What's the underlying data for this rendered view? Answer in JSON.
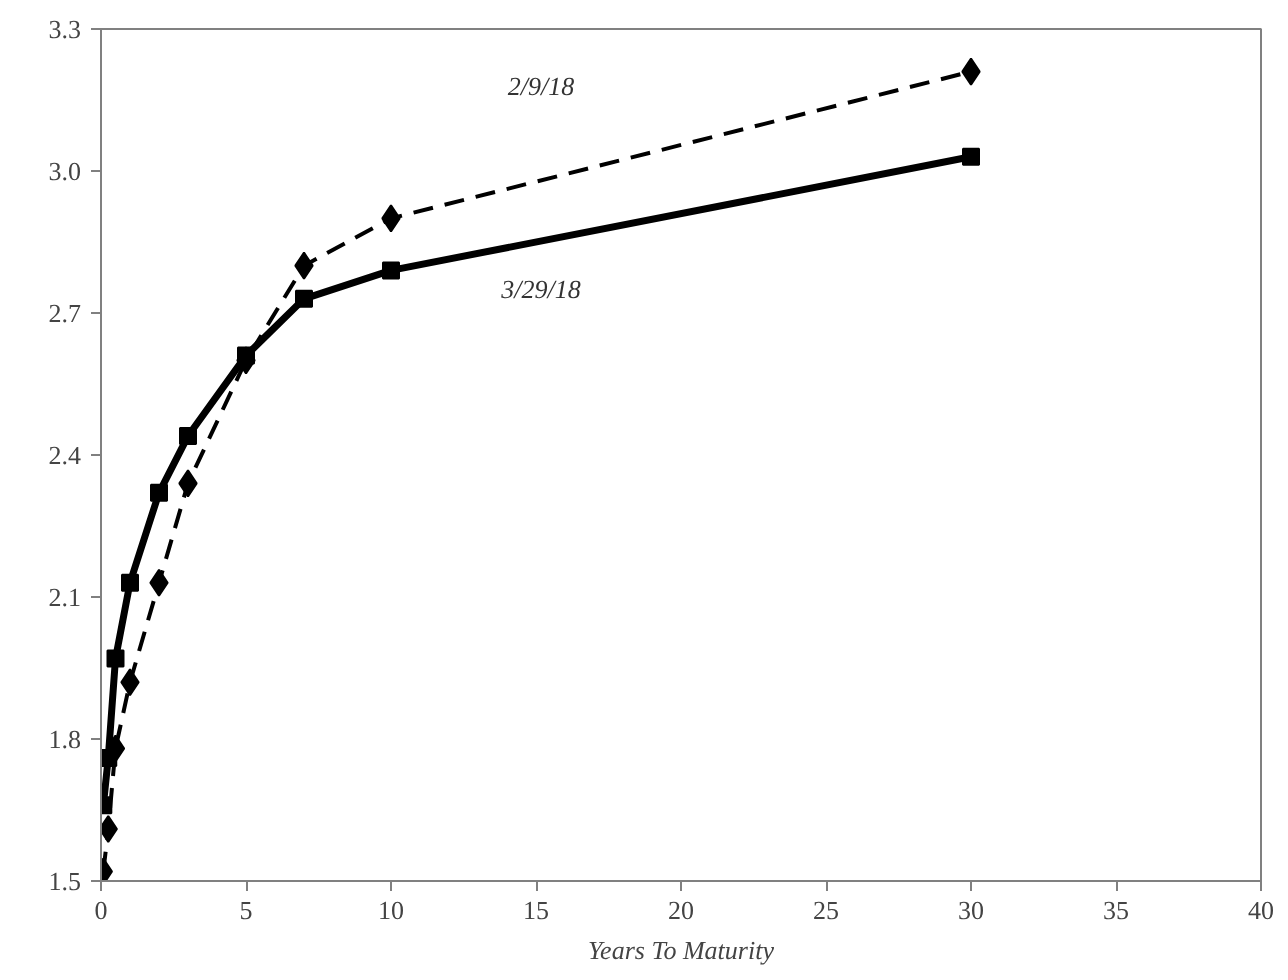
{
  "chart_data": {
    "type": "line",
    "xlabel": "Years To Maturity",
    "x": [
      0.08,
      0.25,
      0.5,
      1,
      2,
      3,
      5,
      7,
      10,
      30
    ],
    "series": [
      {
        "name": "2/9/18",
        "color": "#000000",
        "line_style": "dashed",
        "marker": "diamond",
        "values": [
          1.52,
          1.61,
          1.78,
          1.92,
          2.13,
          2.34,
          2.6,
          2.8,
          2.9,
          3.21
        ]
      },
      {
        "name": "3/29/18",
        "color": "#000000",
        "line_style": "solid",
        "marker": "square",
        "values": [
          1.66,
          1.76,
          1.97,
          2.13,
          2.32,
          2.44,
          2.61,
          2.73,
          2.79,
          3.03
        ]
      }
    ],
    "xlim": [
      0,
      40
    ],
    "xticks": [
      0,
      5,
      10,
      15,
      20,
      25,
      30,
      35,
      40
    ],
    "ylim": [
      1.5,
      3.3
    ],
    "yticks": [
      {
        "value": 1.5,
        "label": "1.5"
      },
      {
        "value": 1.8,
        "label": "1.8"
      },
      {
        "value": 2.1,
        "label": "2.1"
      },
      {
        "value": 2.4,
        "label": "2.4"
      },
      {
        "value": 2.7,
        "label": "2.7"
      },
      {
        "value": 3.0,
        "label": "3.0"
      },
      {
        "value": 3.3,
        "label": "3.3"
      }
    ],
    "grid": false,
    "legend": false
  }
}
